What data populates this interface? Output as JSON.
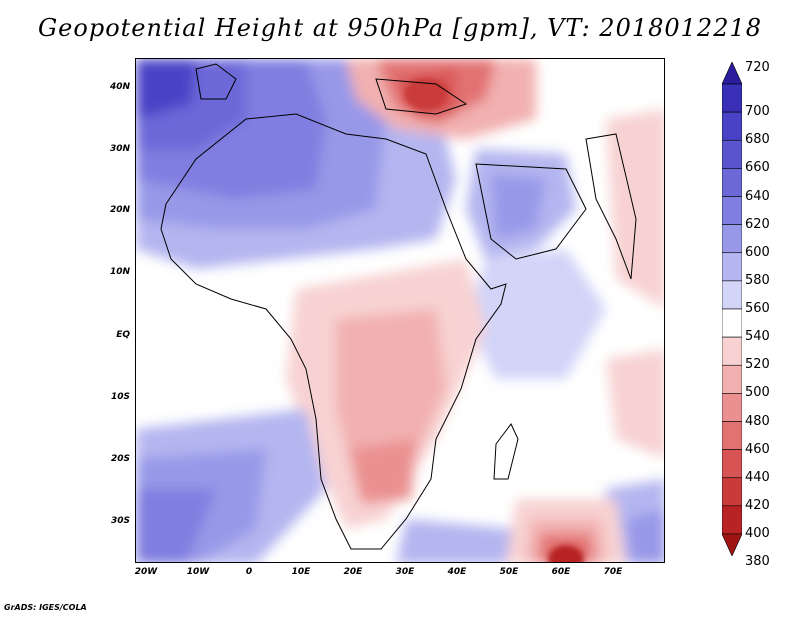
{
  "title": "Geopotential Height at 950hPa [gpm], VT: 2018012218",
  "credit": "GrADS: IGES/COLA",
  "lat_labels": [
    "40N",
    "30N",
    "20N",
    "10N",
    "EQ",
    "10S",
    "20S",
    "30S"
  ],
  "lon_labels": [
    "20W",
    "10W",
    "0",
    "10E",
    "20E",
    "30E",
    "40E",
    "50E",
    "60E",
    "70E"
  ],
  "colorbar": {
    "levels": [
      "720",
      "700",
      "680",
      "660",
      "640",
      "620",
      "600",
      "580",
      "560",
      "540",
      "520",
      "500",
      "480",
      "460",
      "440",
      "420",
      "400",
      "380"
    ],
    "colors": [
      "#2a1e9e",
      "#3a30b8",
      "#4a42c6",
      "#5a55cf",
      "#6c68d8",
      "#807ee0",
      "#9898e8",
      "#b4b6f0",
      "#d2d4f8",
      "#ffffff",
      "#f8d2d2",
      "#f2b0b0",
      "#ea9090",
      "#e27272",
      "#d85454",
      "#ca3a3a",
      "#b82424",
      "#a01414"
    ]
  },
  "map": {
    "variable": "Geopotential Height",
    "level": "950hPa",
    "units": "gpm",
    "valid_time": "2018012218"
  }
}
